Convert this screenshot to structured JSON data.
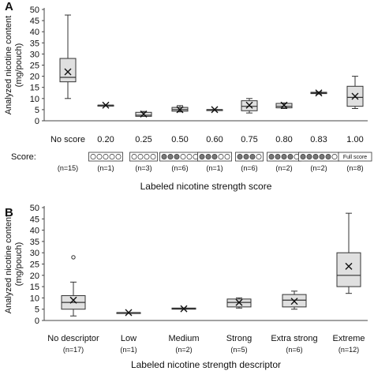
{
  "chart_data": [
    {
      "panel_label": "A",
      "type": "box",
      "ylabel_lines": [
        "Analyzed nicotine content",
        "(mg/pouch)"
      ],
      "xlabel": "Labeled nicotine strength score",
      "ylim": [
        0,
        50
      ],
      "yticks": [
        0,
        5,
        10,
        15,
        20,
        25,
        30,
        35,
        40,
        45,
        50
      ],
      "grid": false,
      "score_row_label": "Score:",
      "categories": [
        "No score",
        "0.20",
        "0.25",
        "0.50",
        "0.60",
        "0.75",
        "0.80",
        "0.83",
        "1.00"
      ],
      "counts": [
        "(n=15)",
        "(n=1)",
        "(n=3)",
        "(n=6)",
        "(n=1)",
        "(n=6)",
        "(n=2)",
        "(n=2)",
        "(n=8)"
      ],
      "score_icons": [
        {
          "type": "none"
        },
        {
          "type": "dots",
          "filled": 0,
          "total": 5
        },
        {
          "type": "dots",
          "filled": 0,
          "total": 4
        },
        {
          "type": "dots",
          "filled": 3,
          "total": 6
        },
        {
          "type": "dots",
          "filled": 3,
          "total": 5
        },
        {
          "type": "dots",
          "filled": 3,
          "total": 4
        },
        {
          "type": "dots",
          "filled": 4,
          "total": 5
        },
        {
          "type": "dots",
          "filled": 5,
          "total": 6
        },
        {
          "type": "text",
          "label": "Full score"
        }
      ],
      "boxes": [
        {
          "min": 10,
          "q1": 17.5,
          "median": 19.5,
          "q3": 28,
          "max": 47.5,
          "mean": 22
        },
        {
          "min": 7,
          "q1": 7,
          "median": 7,
          "q3": 7,
          "max": 7,
          "mean": 7
        },
        {
          "min": 2,
          "q1": 2,
          "median": 2.5,
          "q3": 3.8,
          "max": 4.2,
          "mean": 3
        },
        {
          "min": 4,
          "q1": 4.3,
          "median": 5,
          "q3": 6,
          "max": 6.8,
          "mean": 5
        },
        {
          "min": 5,
          "q1": 5,
          "median": 5,
          "q3": 5,
          "max": 5,
          "mean": 5
        },
        {
          "min": 3.5,
          "q1": 4.5,
          "median": 6.5,
          "q3": 9,
          "max": 10,
          "mean": 7
        },
        {
          "min": 5.5,
          "q1": 5.8,
          "median": 6.5,
          "q3": 7.8,
          "max": 8,
          "mean": 7
        },
        {
          "min": 12,
          "q1": 12.2,
          "median": 12.5,
          "q3": 12.8,
          "max": 13,
          "mean": 12.5
        },
        {
          "min": 5.5,
          "q1": 6.5,
          "median": 10.5,
          "q3": 15.5,
          "max": 20,
          "mean": 11
        }
      ],
      "outliers": []
    },
    {
      "panel_label": "B",
      "type": "box",
      "ylabel_lines": [
        "Analyzed nicotine content",
        "(mg/pouch)"
      ],
      "xlabel": "Labeled nicotine strength descriptor",
      "ylim": [
        0,
        50
      ],
      "yticks": [
        0,
        5,
        10,
        15,
        20,
        25,
        30,
        35,
        40,
        45,
        50
      ],
      "grid": false,
      "categories": [
        "No descriptor",
        "Low",
        "Medium",
        "Strong",
        "Extra strong",
        "Extreme"
      ],
      "counts": [
        "(n=17)",
        "(n=1)",
        "(n=2)",
        "(n=5)",
        "(n=6)",
        "(n=12)"
      ],
      "boxes": [
        {
          "min": 2,
          "q1": 5,
          "median": 8,
          "q3": 11,
          "max": 17,
          "mean": 9
        },
        {
          "min": 3.5,
          "q1": 3.5,
          "median": 3.5,
          "q3": 3.5,
          "max": 3.5,
          "mean": 3.5
        },
        {
          "min": 5,
          "q1": 5,
          "median": 5.2,
          "q3": 5.5,
          "max": 5.5,
          "mean": 5.2
        },
        {
          "min": 5.5,
          "q1": 6,
          "median": 8,
          "q3": 9.5,
          "max": 10,
          "mean": 8
        },
        {
          "min": 5,
          "q1": 6,
          "median": 9,
          "q3": 11.5,
          "max": 13,
          "mean": 8.5
        },
        {
          "min": 12,
          "q1": 15,
          "median": 20,
          "q3": 30,
          "max": 47.5,
          "mean": 24
        }
      ],
      "outliers": [
        {
          "category": 0,
          "value": 28
        }
      ]
    }
  ],
  "colors": {
    "box_fill": "#e0e0e0",
    "stroke": "#333333",
    "dot_filled": "#7a7a7a",
    "axis": "#444444"
  }
}
